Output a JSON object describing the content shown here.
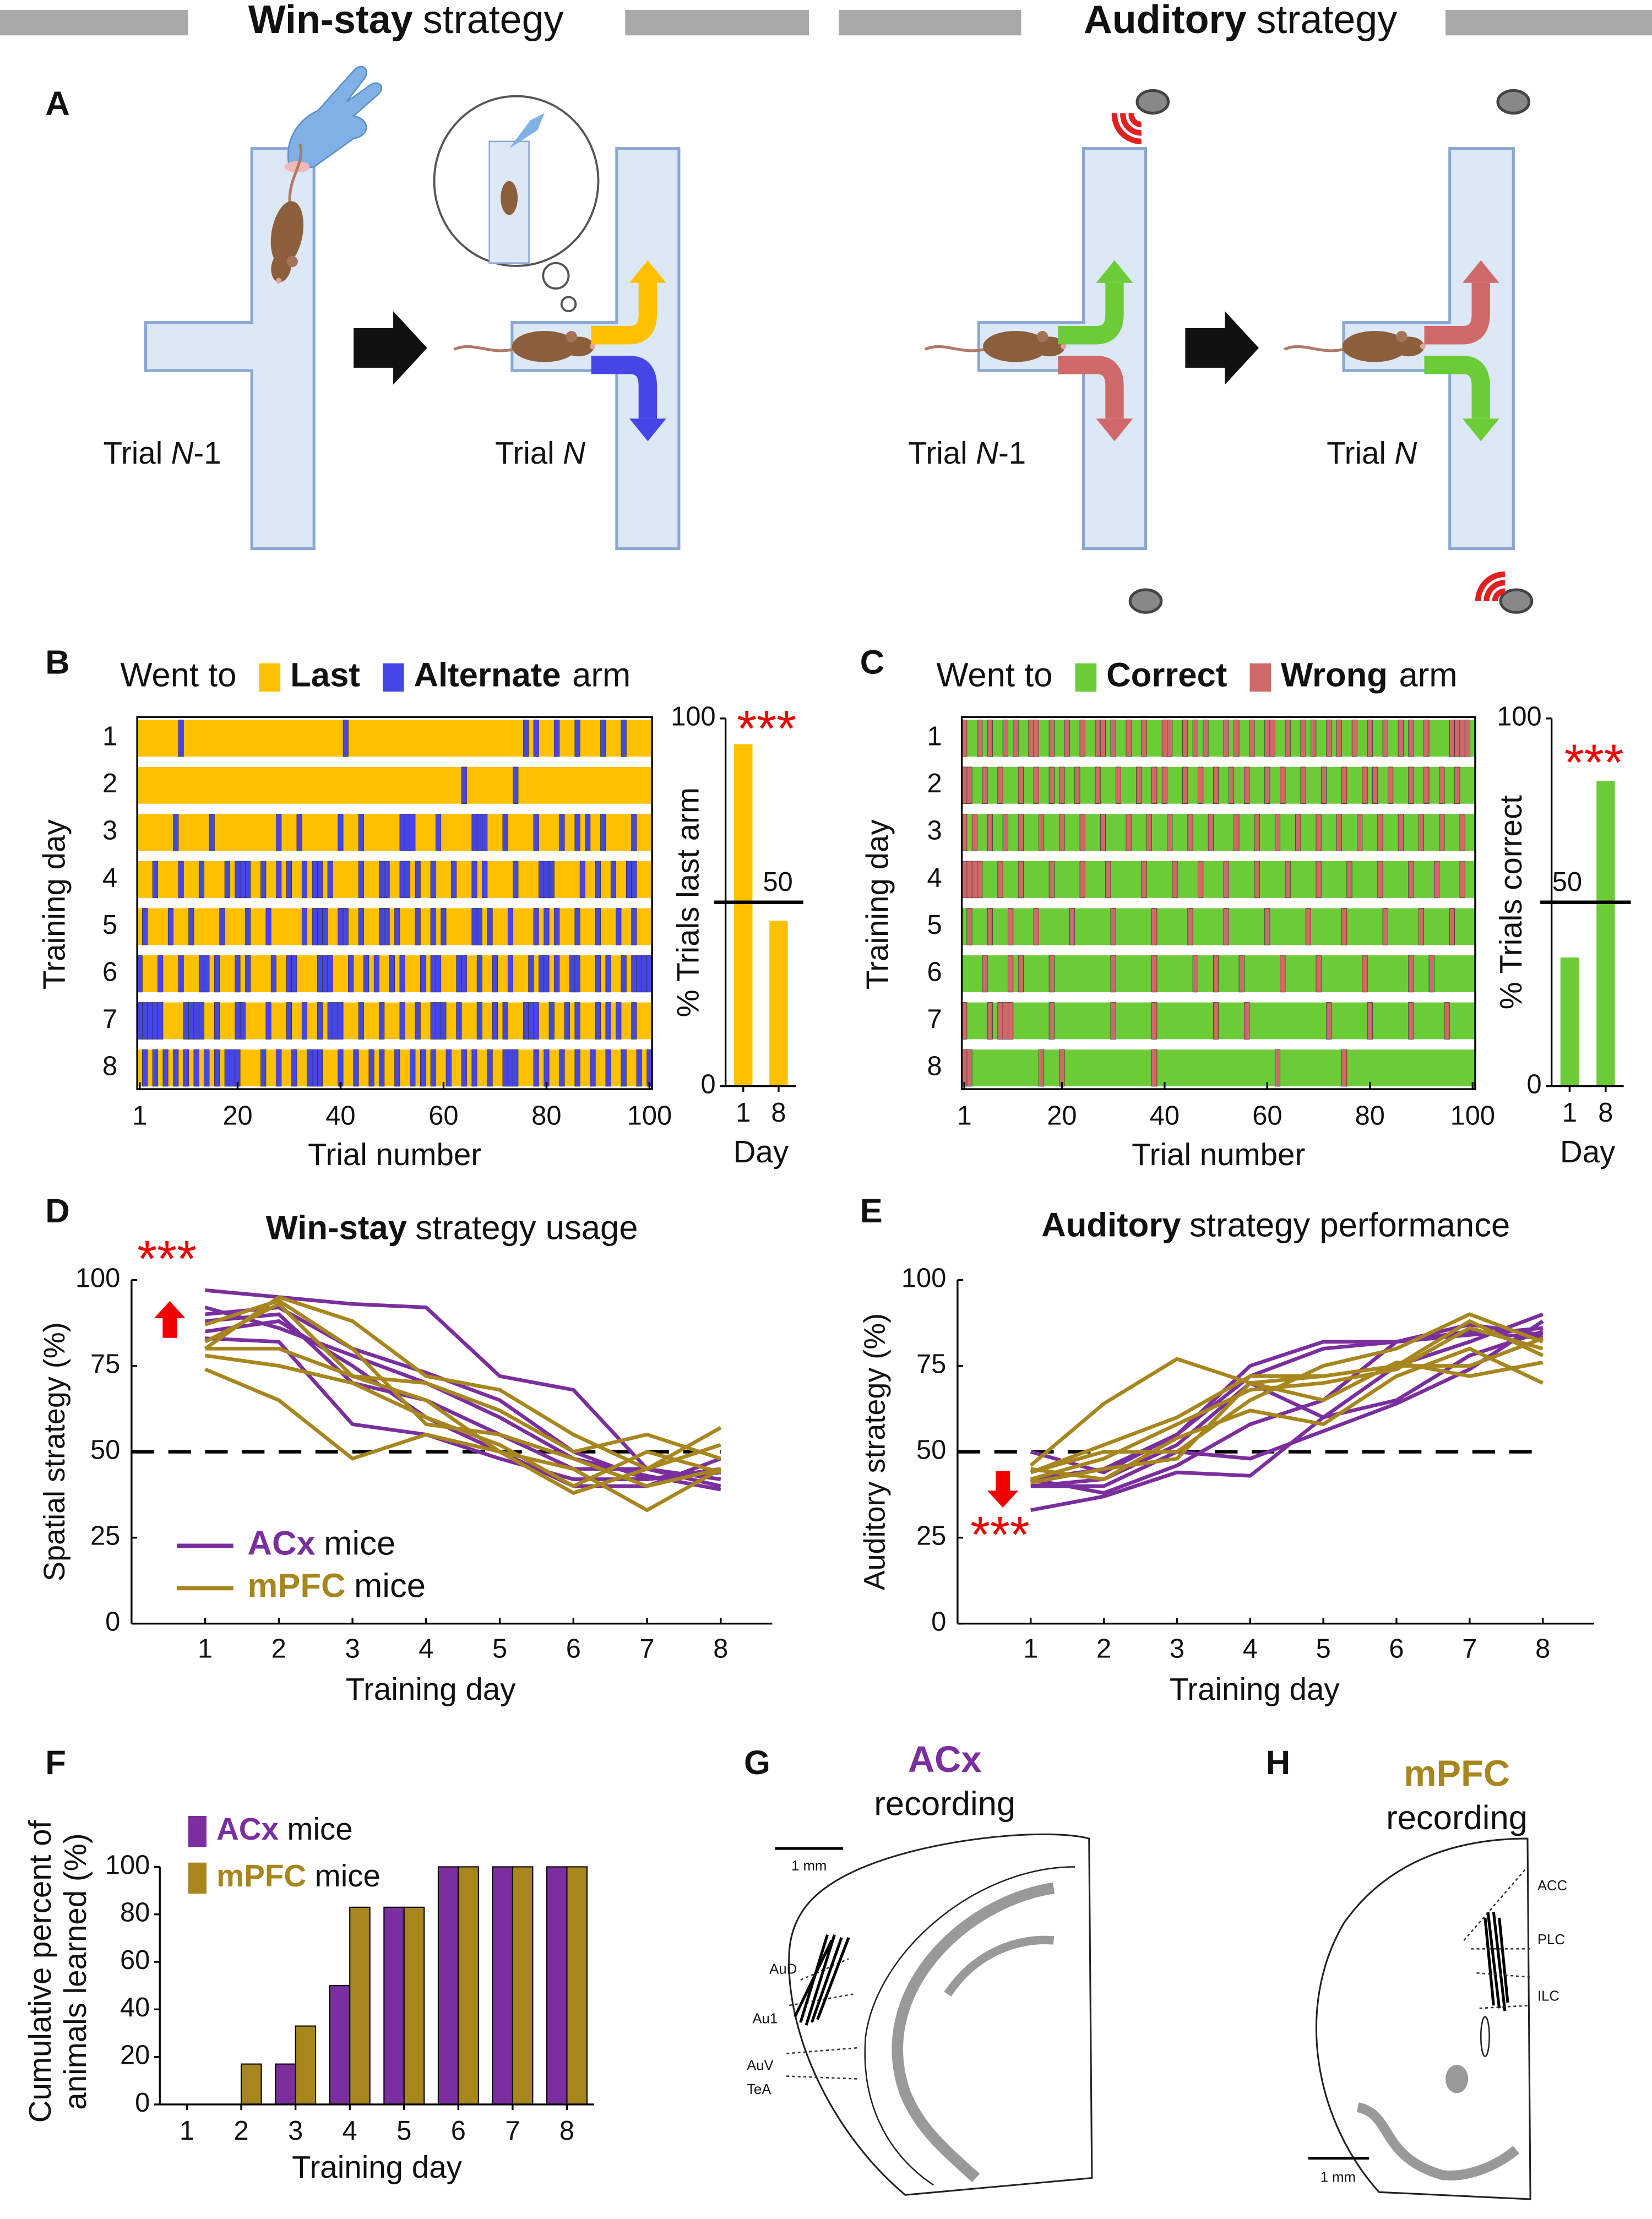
{
  "headers": [
    {
      "bold": "Win-stay",
      "rest": "strategy"
    },
    {
      "bold": "Auditory",
      "rest": "strategy"
    }
  ],
  "panel_letters": [
    "A",
    "B",
    "C",
    "D",
    "E",
    "F",
    "G",
    "H"
  ],
  "panel_a": {
    "labels": [
      {
        "word": "Trial",
        "n": "N",
        "suffix": "-1"
      },
      {
        "word": "Trial",
        "n": "N"
      },
      {
        "word": "Trial",
        "n": "N",
        "suffix": "-1"
      },
      {
        "word": "Trial",
        "n": "N"
      }
    ]
  },
  "chart_data": [
    {
      "type": "raster",
      "legend_prefix": "Went to",
      "legend_suffix": "arm",
      "background": {
        "name": "Last",
        "color": "#ffc000"
      },
      "series": [
        {
          "name": "Alternate",
          "color": "#4646e6",
          "x": [
            [
              9,
              41,
              76,
              78,
              82,
              86,
              91,
              95
            ],
            [
              64,
              74
            ],
            [
              8,
              15,
              28,
              32,
              40,
              44,
              52,
              53,
              54,
              59,
              66,
              67,
              68,
              72,
              78,
              83,
              86,
              88,
              91,
              97
            ],
            [
              4,
              9,
              13,
              18,
              20,
              21,
              22,
              25,
              28,
              30,
              33,
              35,
              36,
              38,
              44,
              48,
              49,
              52,
              53,
              55,
              58,
              62,
              66,
              68,
              74,
              79,
              80,
              81,
              87,
              90,
              93,
              96,
              97
            ],
            [
              2,
              7,
              11,
              17,
              22,
              26,
              33,
              35,
              36,
              37,
              40,
              41,
              44,
              48,
              49,
              51,
              55,
              58,
              60,
              66,
              67,
              69,
              73,
              78,
              80,
              82,
              86,
              90,
              94,
              97
            ],
            [
              1,
              5,
              9,
              13,
              14,
              16,
              20,
              22,
              27,
              30,
              31,
              36,
              37,
              38,
              42,
              45,
              47,
              50,
              52,
              56,
              58,
              59,
              63,
              64,
              67,
              70,
              73,
              77,
              79,
              80,
              82,
              85,
              86,
              90,
              92,
              95,
              97,
              98,
              99,
              100
            ],
            [
              1,
              2,
              3,
              4,
              5,
              10,
              11,
              12,
              13,
              16,
              20,
              21,
              26,
              30,
              33,
              36,
              38,
              39,
              40,
              44,
              48,
              52,
              55,
              58,
              59,
              60,
              63,
              67,
              70,
              72,
              76,
              77,
              78,
              81,
              84,
              86,
              90,
              92,
              94,
              97
            ],
            [
              2,
              4,
              6,
              8,
              10,
              12,
              14,
              16,
              18,
              19,
              20,
              25,
              28,
              31,
              34,
              35,
              36,
              40,
              43,
              46,
              48,
              51,
              54,
              56,
              58,
              61,
              64,
              66,
              69,
              72,
              73,
              74,
              78,
              80,
              83,
              86,
              89,
              92,
              95,
              98,
              100
            ]
          ]
        }
      ],
      "categories": [
        1,
        2,
        3,
        4,
        5,
        6,
        7,
        8
      ],
      "ylabel": "Training day",
      "xlabel": "Trial number",
      "xlim": [
        1,
        100
      ],
      "xticks": [
        1,
        20,
        40,
        60,
        80,
        100
      ]
    },
    {
      "type": "bar",
      "categories": [
        1,
        8
      ],
      "values": [
        93,
        45
      ],
      "color": "#ffc000",
      "ylim": [
        0,
        100
      ],
      "yticks": [
        0,
        100
      ],
      "reference_line": 50,
      "annotation": "***",
      "ylabel": "% Trials last arm",
      "xlabel": "Day"
    },
    {
      "type": "raster",
      "legend_prefix": "Went to",
      "legend_suffix": "arm",
      "background": {
        "name": "Correct",
        "color": "#6ccc38"
      },
      "series": [
        {
          "name": "Wrong",
          "color": "#d06a6a",
          "x": [
            [
              1,
              4,
              6,
              9,
              11,
              14,
              15,
              18,
              21,
              24,
              27,
              28,
              30,
              33,
              36,
              40,
              41,
              44,
              46,
              48,
              52,
              54,
              57,
              60,
              61,
              64,
              67,
              69,
              72,
              74,
              77,
              80,
              83,
              86,
              88,
              91,
              96,
              97,
              98,
              99
            ],
            [
              1,
              2,
              5,
              8,
              12,
              15,
              18,
              20,
              23,
              27,
              31,
              35,
              38,
              40,
              44,
              47,
              50,
              53,
              56,
              60,
              63,
              67,
              71,
              75,
              79,
              81,
              84,
              88,
              91,
              94,
              97
            ],
            [
              1,
              3,
              6,
              9,
              12,
              16,
              20,
              24,
              28,
              33,
              37,
              41,
              45,
              49,
              54,
              58,
              62,
              66,
              70,
              74,
              78,
              82,
              86,
              90,
              94,
              98
            ],
            [
              1,
              2,
              3,
              4,
              8,
              12,
              18,
              24,
              29,
              36,
              42,
              47,
              52,
              58,
              64,
              70,
              76,
              82,
              88,
              93,
              98
            ],
            [
              2,
              6,
              10,
              15,
              22,
              30,
              38,
              45,
              52,
              60,
              68,
              75,
              83,
              90,
              96
            ],
            [
              5,
              10,
              12,
              18,
              30,
              38,
              46,
              50,
              55,
              63,
              70,
              79,
              88,
              92
            ],
            [
              1,
              6,
              8,
              9,
              10,
              18,
              30,
              38,
              50,
              56,
              72,
              80,
              88,
              95
            ],
            [
              1,
              2,
              16,
              20,
              38,
              62,
              75
            ]
          ]
        }
      ],
      "categories": [
        1,
        2,
        3,
        4,
        5,
        6,
        7,
        8
      ],
      "ylabel": "Training day",
      "xlabel": "Trial number",
      "xlim": [
        1,
        100
      ],
      "xticks": [
        1,
        20,
        40,
        60,
        80,
        100
      ]
    },
    {
      "type": "bar",
      "categories": [
        1,
        8
      ],
      "values": [
        35,
        83
      ],
      "color": "#6ccc38",
      "ylim": [
        0,
        100
      ],
      "yticks": [
        0,
        100
      ],
      "reference_line": 50,
      "annotation": "***",
      "ylabel": "% Trials correct",
      "xlabel": "Day"
    },
    {
      "type": "line",
      "title": {
        "bold": "Win-stay",
        "rest": "strategy usage"
      },
      "xlabel": "Training day",
      "ylabel": "Spatial strategy (%)",
      "x": [
        1,
        2,
        3,
        4,
        5,
        6,
        7,
        8
      ],
      "xlim": [
        0,
        8.7
      ],
      "ylim": [
        0,
        100
      ],
      "xticks": [
        1,
        2,
        3,
        4,
        5,
        6,
        7,
        8
      ],
      "yticks": [
        0,
        25,
        50,
        75,
        100
      ],
      "reference_line": 50,
      "annotation": "***",
      "arrow": "up",
      "legend_suffix": "mice",
      "series": [
        {
          "name": "ACx",
          "color": "#7b2e9e",
          "lines": [
            [
              97,
              95,
              93,
              92,
              72,
              68,
              45,
              40
            ],
            [
              90,
              92,
              80,
              73,
              65,
              50,
              42,
              45
            ],
            [
              88,
              90,
              70,
              65,
              55,
              45,
              45,
              42
            ],
            [
              85,
              88,
              75,
              60,
              50,
              40,
              40,
              48
            ],
            [
              92,
              86,
              78,
              70,
              60,
              48,
              43,
              39
            ],
            [
              83,
              82,
              58,
              55,
              48,
              42,
              42,
              44
            ]
          ]
        },
        {
          "name": "mPFC",
          "color": "#a8861e",
          "lines": [
            [
              80,
              95,
              88,
              72,
              68,
              55,
              45,
              52
            ],
            [
              82,
              93,
              72,
              65,
              50,
              45,
              33,
              45
            ],
            [
              78,
              75,
              70,
              60,
              52,
              40,
              50,
              44
            ],
            [
              74,
              65,
              48,
              55,
              50,
              38,
              45,
              57
            ],
            [
              80,
              80,
              72,
              70,
              62,
              50,
              55,
              48
            ],
            [
              87,
              94,
              80,
              58,
              55,
              48,
              40,
              45
            ]
          ]
        }
      ]
    },
    {
      "type": "line",
      "title": {
        "bold": "Auditory",
        "rest": "strategy performance"
      },
      "xlabel": "Training day",
      "ylabel": "Auditory strategy (%)",
      "x": [
        1,
        2,
        3,
        4,
        5,
        6,
        7,
        8
      ],
      "xlim": [
        0,
        8.7
      ],
      "ylim": [
        0,
        100
      ],
      "xticks": [
        1,
        2,
        3,
        4,
        5,
        6,
        7,
        8
      ],
      "yticks": [
        0,
        25,
        50,
        75,
        100
      ],
      "reference_line": 50,
      "annotation": "***",
      "arrow": "down",
      "series": [
        {
          "name": "ACx",
          "color": "#7b2e9e",
          "lines": [
            [
              33,
              37,
              44,
              43,
              60,
              75,
              82,
              90
            ],
            [
              40,
              42,
              52,
              70,
              60,
              65,
              78,
              85
            ],
            [
              42,
              45,
              55,
              72,
              80,
              82,
              85,
              83
            ],
            [
              40,
              40,
              50,
              48,
              56,
              64,
              74,
              88
            ],
            [
              50,
              44,
              55,
              75,
              82,
              82,
              84,
              86
            ],
            [
              42,
              38,
              46,
              58,
              65,
              82,
              87,
              84
            ]
          ]
        },
        {
          "name": "mPFC",
          "color": "#a8861e",
          "lines": [
            [
              46,
              64,
              77,
              70,
              72,
              75,
              75,
              83
            ],
            [
              44,
              52,
              60,
              72,
              72,
              75,
              88,
              78
            ],
            [
              42,
              48,
              58,
              68,
              70,
              74,
              86,
              80
            ],
            [
              45,
              42,
              54,
              62,
              58,
              72,
              80,
              70
            ],
            [
              44,
              50,
              50,
              65,
              75,
              80,
              90,
              82
            ],
            [
              41,
              45,
              48,
              70,
              65,
              76,
              72,
              76
            ]
          ]
        }
      ]
    },
    {
      "type": "bar",
      "categories": [
        1,
        2,
        3,
        4,
        5,
        6,
        7,
        8
      ],
      "xlabel": "Training day",
      "ylabel": [
        "Cumulative percent of",
        "animals learned (%)"
      ],
      "ylim": [
        0,
        100
      ],
      "yticks": [
        0,
        20,
        40,
        60,
        80,
        100
      ],
      "legend_suffix": "mice",
      "series": [
        {
          "name": "ACx",
          "color": "#7b2e9e",
          "values": [
            0,
            0,
            17,
            50,
            83,
            100,
            100,
            100
          ]
        },
        {
          "name": "mPFC",
          "color": "#a8861e",
          "values": [
            0,
            17,
            33,
            83,
            83,
            100,
            100,
            100
          ]
        }
      ]
    }
  ],
  "panel_g": {
    "title_bold": "ACx",
    "title_rest": "recording",
    "scale": "1 mm",
    "regions": [
      "AuD",
      "Au1",
      "AuV",
      "TeA"
    ]
  },
  "panel_h": {
    "title_bold": "mPFC",
    "title_rest": "recording",
    "scale": "1 mm",
    "regions": [
      "ACC",
      "PLC",
      "ILC"
    ]
  }
}
